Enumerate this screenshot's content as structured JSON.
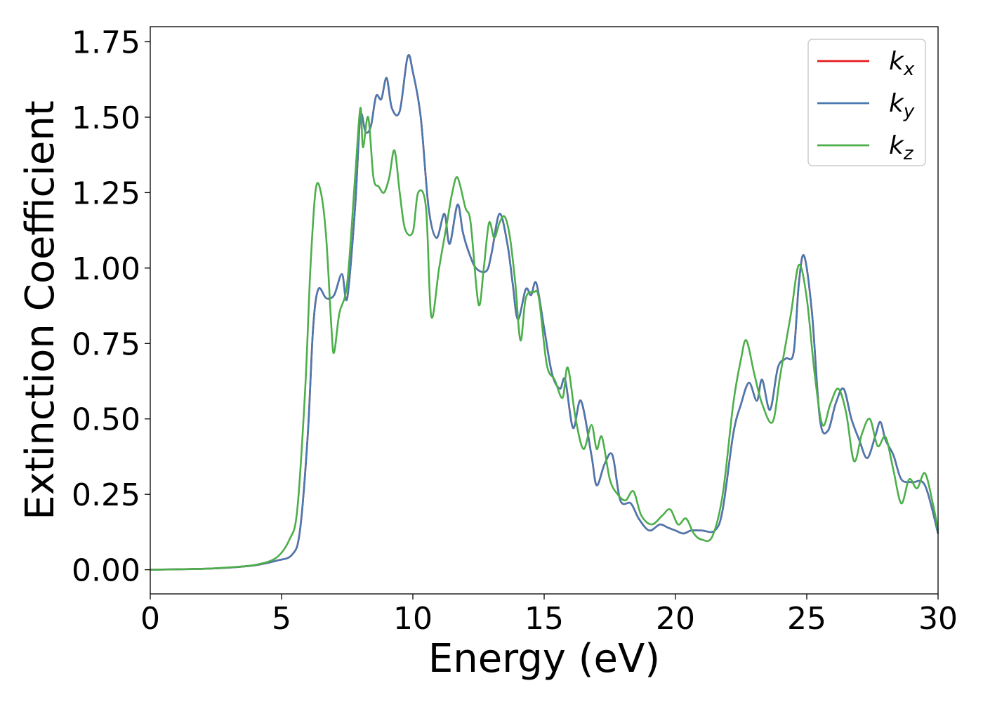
{
  "chart_data": {
    "type": "line",
    "xlabel": "Energy (eV)",
    "ylabel": "Extinction Coefficient",
    "xlim": [
      0,
      30
    ],
    "ylim": [
      -0.08,
      1.8
    ],
    "xticks": [
      0,
      5,
      10,
      15,
      20,
      25,
      30
    ],
    "xtick_labels": [
      "0",
      "5",
      "10",
      "15",
      "20",
      "25",
      "30"
    ],
    "yticks": [
      0,
      0.25,
      0.5,
      0.75,
      1.0,
      1.25,
      1.5,
      1.75
    ],
    "ytick_labels": [
      "0.00",
      "0.25",
      "0.50",
      "0.75",
      "1.00",
      "1.25",
      "1.50",
      "1.75"
    ],
    "grid": false,
    "legend_position": "top-right",
    "series": [
      {
        "name": "k",
        "subscript": "x",
        "color": "#e41a1c",
        "points": [
          [
            0,
            0
          ],
          [
            2,
            0.003
          ],
          [
            3,
            0.007
          ],
          [
            4,
            0.015
          ],
          [
            4.8,
            0.03
          ],
          [
            5.4,
            0.05
          ],
          [
            5.7,
            0.13
          ],
          [
            6.0,
            0.45
          ],
          [
            6.2,
            0.8
          ],
          [
            6.4,
            0.93
          ],
          [
            6.7,
            0.9
          ],
          [
            7.0,
            0.91
          ],
          [
            7.3,
            0.98
          ],
          [
            7.5,
            0.9
          ],
          [
            7.8,
            1.2
          ],
          [
            8.0,
            1.5
          ],
          [
            8.2,
            1.45
          ],
          [
            8.4,
            1.47
          ],
          [
            8.6,
            1.57
          ],
          [
            8.8,
            1.56
          ],
          [
            9.0,
            1.63
          ],
          [
            9.2,
            1.53
          ],
          [
            9.5,
            1.52
          ],
          [
            9.8,
            1.7
          ],
          [
            10.0,
            1.65
          ],
          [
            10.3,
            1.5
          ],
          [
            10.6,
            1.2
          ],
          [
            10.9,
            1.1
          ],
          [
            11.2,
            1.18
          ],
          [
            11.4,
            1.08
          ],
          [
            11.7,
            1.21
          ],
          [
            11.9,
            1.12
          ],
          [
            12.1,
            1.06
          ],
          [
            12.4,
            1.0
          ],
          [
            12.8,
            0.99
          ],
          [
            13.0,
            1.05
          ],
          [
            13.3,
            1.18
          ],
          [
            13.6,
            1.08
          ],
          [
            13.8,
            0.95
          ],
          [
            14.0,
            0.83
          ],
          [
            14.3,
            0.93
          ],
          [
            14.5,
            0.91
          ],
          [
            14.7,
            0.95
          ],
          [
            15.0,
            0.8
          ],
          [
            15.3,
            0.65
          ],
          [
            15.6,
            0.6
          ],
          [
            15.8,
            0.63
          ],
          [
            16.1,
            0.47
          ],
          [
            16.4,
            0.56
          ],
          [
            16.8,
            0.38
          ],
          [
            17.0,
            0.28
          ],
          [
            17.3,
            0.35
          ],
          [
            17.6,
            0.38
          ],
          [
            17.9,
            0.23
          ],
          [
            18.3,
            0.22
          ],
          [
            18.6,
            0.17
          ],
          [
            19.0,
            0.13
          ],
          [
            19.4,
            0.15
          ],
          [
            19.7,
            0.14
          ],
          [
            20.0,
            0.13
          ],
          [
            20.3,
            0.12
          ],
          [
            20.6,
            0.13
          ],
          [
            21.0,
            0.13
          ],
          [
            21.5,
            0.13
          ],
          [
            21.8,
            0.2
          ],
          [
            22.2,
            0.45
          ],
          [
            22.5,
            0.55
          ],
          [
            22.8,
            0.62
          ],
          [
            23.1,
            0.56
          ],
          [
            23.3,
            0.63
          ],
          [
            23.6,
            0.53
          ],
          [
            23.9,
            0.67
          ],
          [
            24.2,
            0.7
          ],
          [
            24.5,
            0.72
          ],
          [
            24.7,
            0.95
          ],
          [
            24.9,
            1.04
          ],
          [
            25.2,
            0.85
          ],
          [
            25.5,
            0.5
          ],
          [
            25.8,
            0.46
          ],
          [
            26.1,
            0.55
          ],
          [
            26.4,
            0.6
          ],
          [
            26.7,
            0.5
          ],
          [
            27.0,
            0.43
          ],
          [
            27.3,
            0.37
          ],
          [
            27.6,
            0.44
          ],
          [
            27.8,
            0.49
          ],
          [
            28.0,
            0.43
          ],
          [
            28.3,
            0.38
          ],
          [
            28.6,
            0.3
          ],
          [
            29.0,
            0.29
          ],
          [
            29.5,
            0.28
          ],
          [
            30,
            0.12
          ]
        ]
      },
      {
        "name": "k",
        "subscript": "y",
        "color": "#4a79b0",
        "points": [
          [
            0,
            0
          ],
          [
            2,
            0.003
          ],
          [
            3,
            0.007
          ],
          [
            4,
            0.015
          ],
          [
            4.8,
            0.03
          ],
          [
            5.4,
            0.05
          ],
          [
            5.7,
            0.13
          ],
          [
            6.0,
            0.45
          ],
          [
            6.2,
            0.8
          ],
          [
            6.4,
            0.93
          ],
          [
            6.7,
            0.9
          ],
          [
            7.0,
            0.91
          ],
          [
            7.3,
            0.98
          ],
          [
            7.5,
            0.9
          ],
          [
            7.8,
            1.2
          ],
          [
            8.0,
            1.5
          ],
          [
            8.2,
            1.45
          ],
          [
            8.4,
            1.47
          ],
          [
            8.6,
            1.57
          ],
          [
            8.8,
            1.56
          ],
          [
            9.0,
            1.63
          ],
          [
            9.2,
            1.53
          ],
          [
            9.5,
            1.52
          ],
          [
            9.8,
            1.7
          ],
          [
            10.0,
            1.65
          ],
          [
            10.3,
            1.5
          ],
          [
            10.6,
            1.2
          ],
          [
            10.9,
            1.1
          ],
          [
            11.2,
            1.18
          ],
          [
            11.4,
            1.08
          ],
          [
            11.7,
            1.21
          ],
          [
            11.9,
            1.12
          ],
          [
            12.1,
            1.06
          ],
          [
            12.4,
            1.0
          ],
          [
            12.8,
            0.99
          ],
          [
            13.0,
            1.05
          ],
          [
            13.3,
            1.18
          ],
          [
            13.6,
            1.08
          ],
          [
            13.8,
            0.95
          ],
          [
            14.0,
            0.83
          ],
          [
            14.3,
            0.93
          ],
          [
            14.5,
            0.91
          ],
          [
            14.7,
            0.95
          ],
          [
            15.0,
            0.8
          ],
          [
            15.3,
            0.65
          ],
          [
            15.6,
            0.6
          ],
          [
            15.8,
            0.63
          ],
          [
            16.1,
            0.47
          ],
          [
            16.4,
            0.56
          ],
          [
            16.8,
            0.38
          ],
          [
            17.0,
            0.28
          ],
          [
            17.3,
            0.35
          ],
          [
            17.6,
            0.38
          ],
          [
            17.9,
            0.23
          ],
          [
            18.3,
            0.22
          ],
          [
            18.6,
            0.17
          ],
          [
            19.0,
            0.13
          ],
          [
            19.4,
            0.15
          ],
          [
            19.7,
            0.14
          ],
          [
            20.0,
            0.13
          ],
          [
            20.3,
            0.12
          ],
          [
            20.6,
            0.13
          ],
          [
            21.0,
            0.13
          ],
          [
            21.5,
            0.13
          ],
          [
            21.8,
            0.2
          ],
          [
            22.2,
            0.45
          ],
          [
            22.5,
            0.55
          ],
          [
            22.8,
            0.62
          ],
          [
            23.1,
            0.56
          ],
          [
            23.3,
            0.63
          ],
          [
            23.6,
            0.53
          ],
          [
            23.9,
            0.67
          ],
          [
            24.2,
            0.7
          ],
          [
            24.5,
            0.72
          ],
          [
            24.7,
            0.95
          ],
          [
            24.9,
            1.04
          ],
          [
            25.2,
            0.85
          ],
          [
            25.5,
            0.5
          ],
          [
            25.8,
            0.46
          ],
          [
            26.1,
            0.55
          ],
          [
            26.4,
            0.6
          ],
          [
            26.7,
            0.5
          ],
          [
            27.0,
            0.43
          ],
          [
            27.3,
            0.37
          ],
          [
            27.6,
            0.44
          ],
          [
            27.8,
            0.49
          ],
          [
            28.0,
            0.43
          ],
          [
            28.3,
            0.38
          ],
          [
            28.6,
            0.3
          ],
          [
            29.0,
            0.29
          ],
          [
            29.5,
            0.28
          ],
          [
            30,
            0.12
          ]
        ]
      },
      {
        "name": "k",
        "subscript": "z",
        "color": "#4daf4a",
        "points": [
          [
            0,
            0
          ],
          [
            2,
            0.003
          ],
          [
            3,
            0.008
          ],
          [
            4,
            0.016
          ],
          [
            4.8,
            0.04
          ],
          [
            5.3,
            0.1
          ],
          [
            5.6,
            0.2
          ],
          [
            5.9,
            0.6
          ],
          [
            6.1,
            1.0
          ],
          [
            6.3,
            1.26
          ],
          [
            6.5,
            1.25
          ],
          [
            6.7,
            1.1
          ],
          [
            6.9,
            0.8
          ],
          [
            7.0,
            0.72
          ],
          [
            7.2,
            0.85
          ],
          [
            7.5,
            0.95
          ],
          [
            7.8,
            1.3
          ],
          [
            8.0,
            1.53
          ],
          [
            8.1,
            1.4
          ],
          [
            8.3,
            1.5
          ],
          [
            8.5,
            1.3
          ],
          [
            8.7,
            1.27
          ],
          [
            8.9,
            1.25
          ],
          [
            9.1,
            1.3
          ],
          [
            9.3,
            1.39
          ],
          [
            9.5,
            1.25
          ],
          [
            9.7,
            1.13
          ],
          [
            10.0,
            1.12
          ],
          [
            10.2,
            1.25
          ],
          [
            10.5,
            1.2
          ],
          [
            10.7,
            0.84
          ],
          [
            11.0,
            1.0
          ],
          [
            11.3,
            1.15
          ],
          [
            11.5,
            1.25
          ],
          [
            11.7,
            1.3
          ],
          [
            12.0,
            1.2
          ],
          [
            12.2,
            1.15
          ],
          [
            12.5,
            0.88
          ],
          [
            12.7,
            1.0
          ],
          [
            12.9,
            1.15
          ],
          [
            13.1,
            1.1
          ],
          [
            13.3,
            1.15
          ],
          [
            13.5,
            1.17
          ],
          [
            13.7,
            1.1
          ],
          [
            13.9,
            0.95
          ],
          [
            14.1,
            0.76
          ],
          [
            14.3,
            0.9
          ],
          [
            14.6,
            0.92
          ],
          [
            14.8,
            0.9
          ],
          [
            15.1,
            0.68
          ],
          [
            15.4,
            0.63
          ],
          [
            15.7,
            0.57
          ],
          [
            15.9,
            0.67
          ],
          [
            16.2,
            0.5
          ],
          [
            16.5,
            0.4
          ],
          [
            16.8,
            0.48
          ],
          [
            17.0,
            0.4
          ],
          [
            17.2,
            0.44
          ],
          [
            17.5,
            0.3
          ],
          [
            17.8,
            0.25
          ],
          [
            18.1,
            0.23
          ],
          [
            18.4,
            0.26
          ],
          [
            18.7,
            0.18
          ],
          [
            19.1,
            0.15
          ],
          [
            19.5,
            0.18
          ],
          [
            19.8,
            0.2
          ],
          [
            20.1,
            0.15
          ],
          [
            20.4,
            0.17
          ],
          [
            20.7,
            0.12
          ],
          [
            21.0,
            0.1
          ],
          [
            21.4,
            0.11
          ],
          [
            21.8,
            0.25
          ],
          [
            22.2,
            0.55
          ],
          [
            22.5,
            0.7
          ],
          [
            22.7,
            0.76
          ],
          [
            23.0,
            0.65
          ],
          [
            23.3,
            0.55
          ],
          [
            23.7,
            0.49
          ],
          [
            24.0,
            0.65
          ],
          [
            24.4,
            0.85
          ],
          [
            24.7,
            1.01
          ],
          [
            25.0,
            0.9
          ],
          [
            25.3,
            0.65
          ],
          [
            25.6,
            0.48
          ],
          [
            25.9,
            0.55
          ],
          [
            26.2,
            0.6
          ],
          [
            26.5,
            0.52
          ],
          [
            26.8,
            0.36
          ],
          [
            27.1,
            0.45
          ],
          [
            27.4,
            0.5
          ],
          [
            27.7,
            0.41
          ],
          [
            28.0,
            0.44
          ],
          [
            28.3,
            0.33
          ],
          [
            28.6,
            0.22
          ],
          [
            28.9,
            0.3
          ],
          [
            29.2,
            0.27
          ],
          [
            29.5,
            0.32
          ],
          [
            29.8,
            0.22
          ],
          [
            30,
            0.13
          ]
        ]
      }
    ]
  }
}
